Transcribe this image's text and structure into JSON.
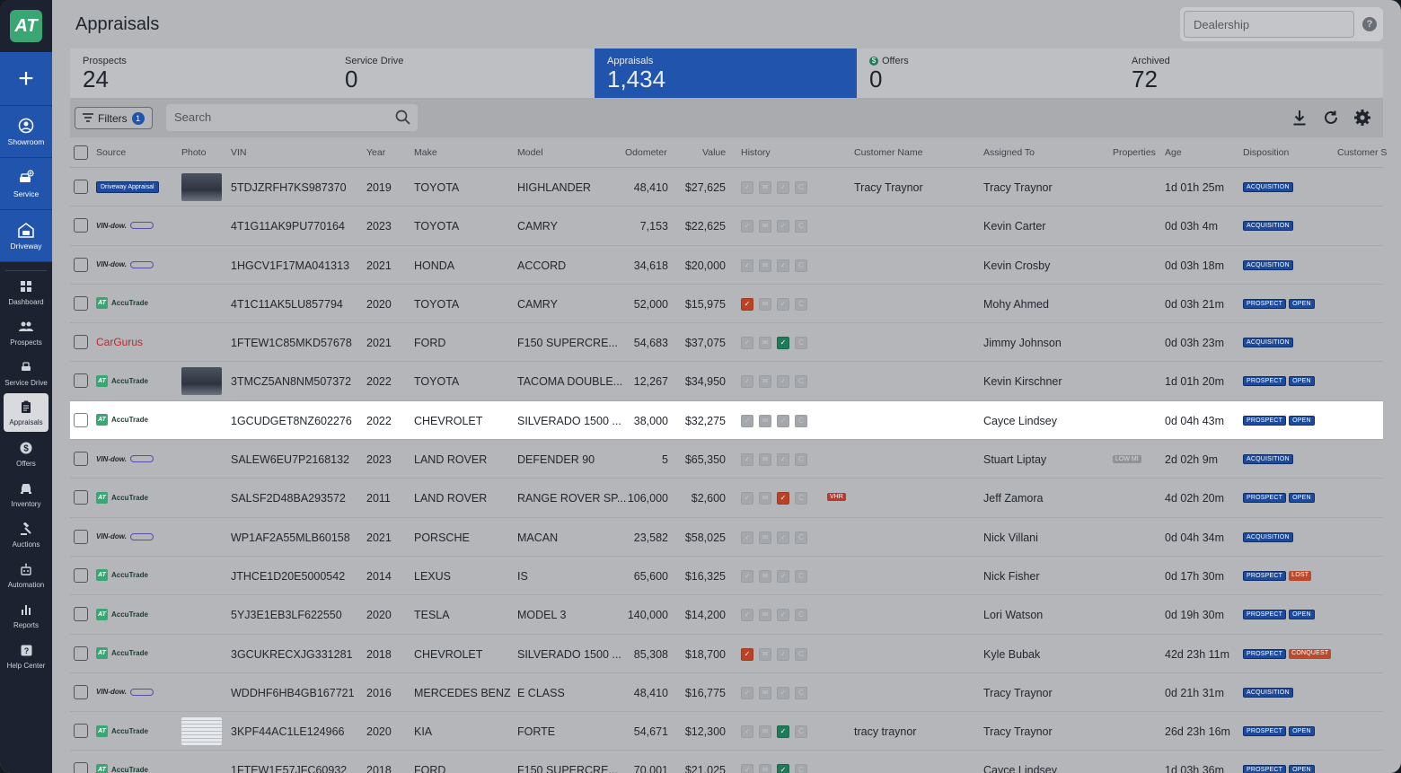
{
  "app": {
    "logo_text": "AT",
    "page_title": "Appraisals"
  },
  "sidebar": {
    "top": [
      {
        "label": "Showroom",
        "icon": "user-circle-icon"
      },
      {
        "label": "Service",
        "icon": "car-plus-icon"
      },
      {
        "label": "Driveway",
        "icon": "garage-icon"
      }
    ],
    "items": [
      {
        "label": "Dashboard",
        "icon": "grid-icon"
      },
      {
        "label": "Prospects",
        "icon": "people-icon"
      },
      {
        "label": "Service Drive",
        "icon": "car-icon"
      },
      {
        "label": "Appraisals",
        "icon": "clipboard-icon",
        "active": true
      },
      {
        "label": "Offers",
        "icon": "dollar-icon"
      },
      {
        "label": "Inventory",
        "icon": "car-front-icon"
      },
      {
        "label": "Auctions",
        "icon": "gavel-icon"
      },
      {
        "label": "Automation",
        "icon": "robot-icon"
      },
      {
        "label": "Reports",
        "icon": "bar-chart-icon"
      },
      {
        "label": "Help Center",
        "icon": "question-icon"
      }
    ]
  },
  "header": {
    "dealership_placeholder": "Dealership",
    "help": "?"
  },
  "stats": [
    {
      "label": "Prospects",
      "value": "24"
    },
    {
      "label": "Service Drive",
      "value": "0"
    },
    {
      "label": "Appraisals",
      "value": "1,434",
      "active": true
    },
    {
      "label": "Offers",
      "value": "0",
      "icon": "dollar-circle-icon"
    },
    {
      "label": "Archived",
      "value": "72"
    }
  ],
  "toolbar": {
    "filters_label": "Filters",
    "filters_count": "1",
    "search_placeholder": "Search"
  },
  "columns": [
    "Source",
    "Photo",
    "VIN",
    "Year",
    "Make",
    "Model",
    "Odometer",
    "Value",
    "History",
    "Customer Name",
    "Assigned To",
    "Properties",
    "Age",
    "Disposition",
    "Customer S"
  ],
  "rows": [
    {
      "source": "driveway",
      "source_label": "Driveway Appraisal",
      "photo": "car",
      "vin": "5TDJZRFH7KS987370",
      "year": "2019",
      "make": "TOYOTA",
      "model": "HIGHLANDER",
      "odometer": "48,410",
      "value": "$27,625",
      "history": [
        "",
        "",
        "",
        ""
      ],
      "customer": "Tracy Traynor",
      "assigned": "Tracy Traynor",
      "property": "",
      "age": "1d 01h 25m",
      "disposition": [
        "ACQUISITION"
      ]
    },
    {
      "source": "vindow",
      "source_label": "VIN-dow.",
      "photo": "",
      "vin": "4T1G11AK9PU770164",
      "year": "2023",
      "make": "TOYOTA",
      "model": "CAMRY",
      "odometer": "7,153",
      "value": "$22,625",
      "history": [
        "",
        "",
        "",
        ""
      ],
      "customer": "",
      "assigned": "Kevin Carter",
      "property": "",
      "age": "0d 03h 4m",
      "disposition": [
        "ACQUISITION"
      ]
    },
    {
      "source": "vindow",
      "source_label": "VIN-dow.",
      "photo": "",
      "vin": "1HGCV1F17MA041313",
      "year": "2021",
      "make": "HONDA",
      "model": "ACCORD",
      "odometer": "34,618",
      "value": "$20,000",
      "history": [
        "",
        "",
        "",
        ""
      ],
      "customer": "",
      "assigned": "Kevin Crosby",
      "property": "",
      "age": "0d 03h 18m",
      "disposition": [
        "ACQUISITION"
      ]
    },
    {
      "source": "accutrade",
      "source_label": "AccuTrade",
      "photo": "",
      "vin": "4T1C11AK5LU857794",
      "year": "2020",
      "make": "TOYOTA",
      "model": "CAMRY",
      "odometer": "52,000",
      "value": "$15,975",
      "history": [
        "red",
        "",
        "",
        ""
      ],
      "customer": "",
      "assigned": "Mohy Ahmed",
      "property": "",
      "age": "0d 03h 21m",
      "disposition": [
        "PROSPECT",
        "OPEN"
      ]
    },
    {
      "source": "cargurus",
      "source_label": "CarGurus",
      "photo": "",
      "vin": "1FTEW1C85MKD57678",
      "year": "2021",
      "make": "FORD",
      "model": "F150 SUPERCRE...",
      "odometer": "54,683",
      "value": "$37,075",
      "history": [
        "",
        "",
        "green",
        ""
      ],
      "customer": "",
      "assigned": "Jimmy Johnson",
      "property": "",
      "age": "0d 03h 23m",
      "disposition": [
        "ACQUISITION"
      ]
    },
    {
      "source": "accutrade",
      "source_label": "AccuTrade",
      "photo": "car",
      "vin": "3TMCZ5AN8NM507372",
      "year": "2022",
      "make": "TOYOTA",
      "model": "TACOMA DOUBLE...",
      "odometer": "12,267",
      "value": "$34,950",
      "history": [
        "",
        "",
        "",
        ""
      ],
      "customer": "",
      "assigned": "Kevin Kirschner",
      "property": "",
      "age": "1d 01h 20m",
      "disposition": [
        "PROSPECT",
        "OPEN"
      ]
    },
    {
      "source": "accutrade",
      "source_label": "AccuTrade",
      "photo": "",
      "vin": "1GCUDGET8NZ602276",
      "year": "2022",
      "make": "CHEVROLET",
      "model": "SILVERADO 1500 ...",
      "odometer": "38,000",
      "value": "$32,275",
      "history": [
        "",
        "",
        "",
        ""
      ],
      "customer": "",
      "assigned": "Cayce Lindsey",
      "property": "",
      "age": "0d 04h 43m",
      "disposition": [
        "PROSPECT",
        "OPEN"
      ],
      "highlight": true
    },
    {
      "source": "vindow",
      "source_label": "VIN-dow.",
      "photo": "",
      "vin": "SALEW6EU7P2168132",
      "year": "2023",
      "make": "LAND ROVER",
      "model": "DEFENDER 90",
      "odometer": "5",
      "value": "$65,350",
      "history": [
        "",
        "",
        "",
        ""
      ],
      "customer": "",
      "assigned": "Stuart Liptay",
      "property": "LOW MI",
      "age": "2d 02h 9m",
      "disposition": [
        "ACQUISITION"
      ]
    },
    {
      "source": "accutrade",
      "source_label": "AccuTrade",
      "photo": "",
      "vin": "SALSF2D48BA293572",
      "year": "2011",
      "make": "LAND ROVER",
      "model": "RANGE ROVER SP...",
      "odometer": "106,000",
      "value": "$2,600",
      "history": [
        "",
        "",
        "red",
        ""
      ],
      "vhr": "VHR",
      "customer": "",
      "assigned": "Jeff Zamora",
      "property": "",
      "age": "4d 02h 20m",
      "disposition": [
        "PROSPECT",
        "OPEN"
      ]
    },
    {
      "source": "vindow",
      "source_label": "VIN-dow.",
      "photo": "",
      "vin": "WP1AF2A55MLB60158",
      "year": "2021",
      "make": "PORSCHE",
      "model": "MACAN",
      "odometer": "23,582",
      "value": "$58,025",
      "history": [
        "",
        "",
        "",
        ""
      ],
      "customer": "",
      "assigned": "Nick Villani",
      "property": "",
      "age": "0d 04h 34m",
      "disposition": [
        "ACQUISITION"
      ]
    },
    {
      "source": "accutrade",
      "source_label": "AccuTrade",
      "photo": "",
      "vin": "JTHCE1D20E5000542",
      "year": "2014",
      "make": "LEXUS",
      "model": "IS",
      "odometer": "65,600",
      "value": "$16,325",
      "history": [
        "",
        "",
        "",
        ""
      ],
      "customer": "",
      "assigned": "Nick Fisher",
      "property": "",
      "age": "0d 17h 30m",
      "disposition": [
        "PROSPECT",
        "LOST"
      ]
    },
    {
      "source": "accutrade",
      "source_label": "AccuTrade",
      "photo": "",
      "vin": "5YJ3E1EB3LF622550",
      "year": "2020",
      "make": "TESLA",
      "model": "MODEL 3",
      "odometer": "140,000",
      "value": "$14,200",
      "history": [
        "",
        "",
        "",
        ""
      ],
      "customer": "",
      "assigned": "Lori Watson",
      "property": "",
      "age": "0d 19h 30m",
      "disposition": [
        "PROSPECT",
        "OPEN"
      ]
    },
    {
      "source": "accutrade",
      "source_label": "AccuTrade",
      "photo": "",
      "vin": "3GCUKRECXJG331281",
      "year": "2018",
      "make": "CHEVROLET",
      "model": "SILVERADO 1500 ...",
      "odometer": "85,308",
      "value": "$18,700",
      "history": [
        "red",
        "",
        "",
        ""
      ],
      "customer": "",
      "assigned": "Kyle Bubak",
      "property": "",
      "age": "42d 23h 11m",
      "disposition": [
        "PROSPECT",
        "CONQUEST"
      ]
    },
    {
      "source": "vindow",
      "source_label": "VIN-dow.",
      "photo": "",
      "vin": "WDDHF6HB4GB167721",
      "year": "2016",
      "make": "MERCEDES BENZ",
      "model": "E CLASS",
      "odometer": "48,410",
      "value": "$16,775",
      "history": [
        "",
        "",
        "",
        ""
      ],
      "customer": "",
      "assigned": "Tracy Traynor",
      "property": "",
      "age": "0d 21h 31m",
      "disposition": [
        "ACQUISITION"
      ]
    },
    {
      "source": "accutrade",
      "source_label": "AccuTrade",
      "photo": "doc",
      "vin": "3KPF44AC1LE124966",
      "year": "2020",
      "make": "KIA",
      "model": "FORTE",
      "odometer": "54,671",
      "value": "$12,300",
      "history": [
        "",
        "",
        "green",
        ""
      ],
      "customer": "tracy traynor",
      "assigned": "Tracy Traynor",
      "property": "",
      "age": "26d 23h 16m",
      "disposition": [
        "PROSPECT",
        "OPEN"
      ]
    },
    {
      "source": "accutrade",
      "source_label": "AccuTrade",
      "photo": "",
      "vin": "1FTEW1E57JFC60932",
      "year": "2018",
      "make": "FORD",
      "model": "F150 SUPERCRE...",
      "odometer": "70,001",
      "value": "$21,025",
      "history": [
        "",
        "",
        "green",
        ""
      ],
      "customer": "",
      "assigned": "Cayce Lindsey",
      "property": "",
      "age": "1d 03h 36m",
      "disposition": [
        "PROSPECT",
        "OPEN"
      ]
    }
  ]
}
